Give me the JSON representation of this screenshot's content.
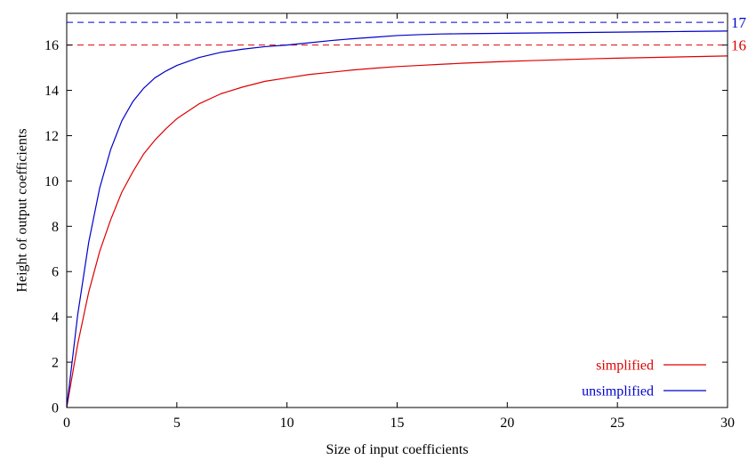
{
  "chart_data": {
    "type": "line",
    "xlabel": "Size of input coefficients",
    "ylabel": "Height of output coefficients",
    "xlim": [
      0,
      30
    ],
    "ylim": [
      0,
      17.4
    ],
    "xticks": [
      0,
      5,
      10,
      15,
      20,
      25,
      30
    ],
    "yticks": [
      0,
      2,
      4,
      6,
      8,
      10,
      12,
      14,
      16
    ],
    "grid": false,
    "legend_position": "bottom-right",
    "reference_lines": [
      {
        "y": 17,
        "label": "17",
        "color": "#0000cc",
        "style": "dashed"
      },
      {
        "y": 16,
        "label": "16",
        "color": "#dd0000",
        "style": "dashed"
      }
    ],
    "series": [
      {
        "name": "simplified",
        "color": "#dd0000",
        "x": [
          0,
          0.5,
          1,
          1.5,
          2,
          2.5,
          3,
          3.5,
          4,
          4.5,
          5,
          6,
          7,
          8,
          9,
          10,
          11,
          12,
          13,
          14,
          15,
          16,
          17,
          18,
          19,
          20,
          21,
          22,
          23,
          24,
          25,
          26,
          27,
          28,
          29,
          30
        ],
        "y": [
          0,
          2.8,
          5.1,
          6.9,
          8.3,
          9.5,
          10.4,
          11.2,
          11.8,
          12.3,
          12.75,
          13.4,
          13.85,
          14.15,
          14.4,
          14.55,
          14.7,
          14.8,
          14.9,
          14.98,
          15.05,
          15.1,
          15.15,
          15.2,
          15.24,
          15.28,
          15.31,
          15.34,
          15.37,
          15.4,
          15.42,
          15.44,
          15.46,
          15.48,
          15.5,
          15.52
        ]
      },
      {
        "name": "unsimplified",
        "color": "#0000cc",
        "x": [
          0,
          0.5,
          1,
          1.5,
          2,
          2.5,
          3,
          3.5,
          4,
          4.5,
          5,
          6,
          7,
          8,
          9,
          10,
          11,
          12,
          13,
          14,
          15,
          16,
          17,
          18,
          19,
          20,
          21,
          22,
          23,
          24,
          25,
          26,
          27,
          28,
          29,
          30
        ],
        "y": [
          0,
          4.1,
          7.3,
          9.7,
          11.4,
          12.65,
          13.5,
          14.1,
          14.55,
          14.85,
          15.1,
          15.45,
          15.68,
          15.82,
          15.93,
          16.0,
          16.1,
          16.2,
          16.28,
          16.35,
          16.42,
          16.46,
          16.49,
          16.5,
          16.51,
          16.52,
          16.53,
          16.54,
          16.55,
          16.56,
          16.57,
          16.58,
          16.59,
          16.6,
          16.61,
          16.62
        ]
      }
    ]
  }
}
